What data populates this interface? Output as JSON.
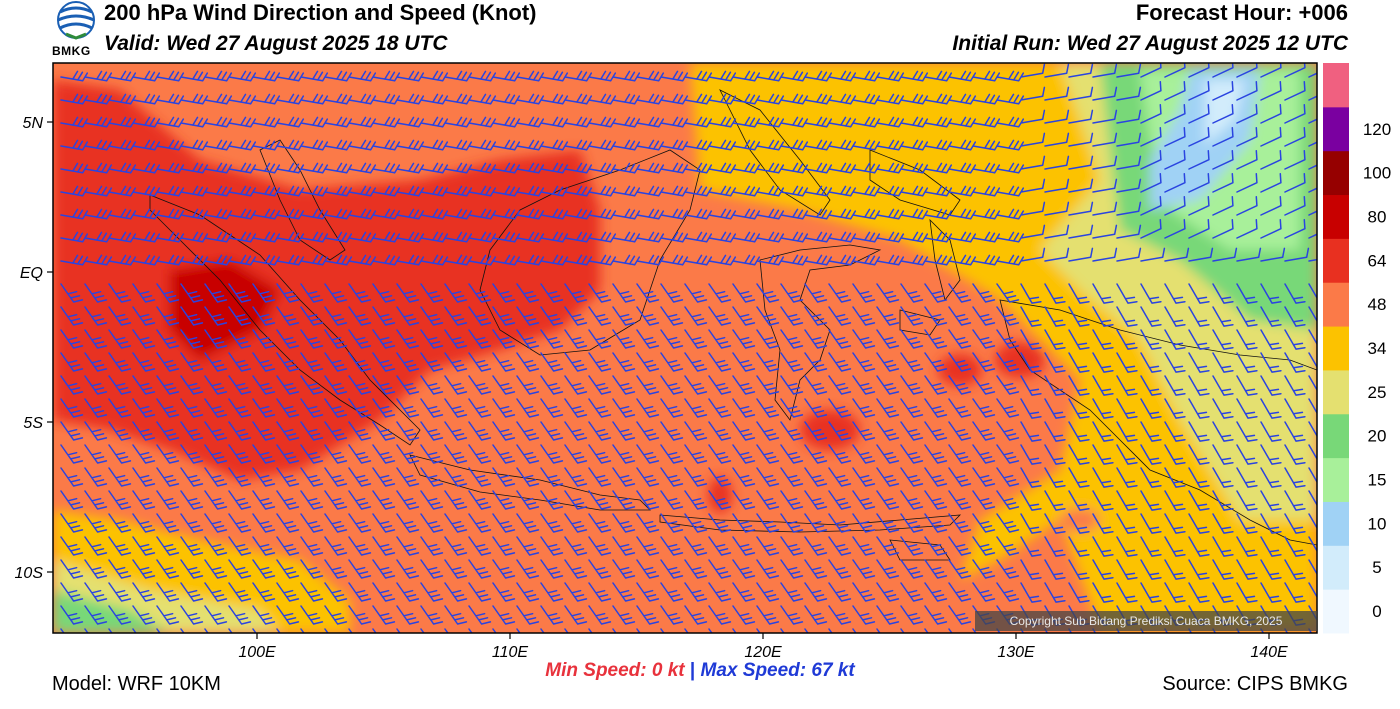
{
  "header": {
    "title": "200 hPa Wind Direction and Speed (Knot)",
    "valid": "Valid: Wed 27 August 2025 18 UTC",
    "forecast_hour": "Forecast Hour: +006",
    "initial_run": "Initial Run: Wed 27 August 2025 12 UTC",
    "logo_text": "BMKG"
  },
  "footer": {
    "model": "Model: WRF 10KM",
    "source": "Source: CIPS BMKG",
    "min_speed": "Min Speed:   0 kt",
    "separator": "|",
    "max_speed": "Max Speed:  67 kt",
    "copyright": "Copyright Sub Bidang Prediksi Cuaca BMKG, 2025"
  },
  "axes": {
    "lat_labels": [
      {
        "label": "5N",
        "value": 5
      },
      {
        "label": "EQ",
        "value": 0
      },
      {
        "label": "5S",
        "value": -5
      },
      {
        "label": "10S",
        "value": -10
      }
    ],
    "lon_labels": [
      {
        "label": "100E",
        "value": 100
      },
      {
        "label": "110E",
        "value": 110
      },
      {
        "label": "120E",
        "value": 120
      },
      {
        "label": "130E",
        "value": 130
      },
      {
        "label": "140E",
        "value": 140
      }
    ]
  },
  "colorbar": {
    "levels": [
      {
        "label": "0",
        "color": "#f0f8ff"
      },
      {
        "label": "5",
        "color": "#d2ecfb"
      },
      {
        "label": "10",
        "color": "#a0d2f5"
      },
      {
        "label": "15",
        "color": "#a8f09a"
      },
      {
        "label": "20",
        "color": "#78d878"
      },
      {
        "label": "25",
        "color": "#e4e070"
      },
      {
        "label": "34",
        "color": "#fcc200"
      },
      {
        "label": "48",
        "color": "#fb7a48"
      },
      {
        "label": "64",
        "color": "#e83020"
      },
      {
        "label": "80",
        "color": "#c80000"
      },
      {
        "label": "100",
        "color": "#960000"
      },
      {
        "label": "120",
        "color": "#7a00a0"
      },
      {
        "label": "",
        "color": "#f06080"
      }
    ]
  },
  "colors": {
    "barb": "#2a44e0",
    "coast": "#111111"
  }
}
